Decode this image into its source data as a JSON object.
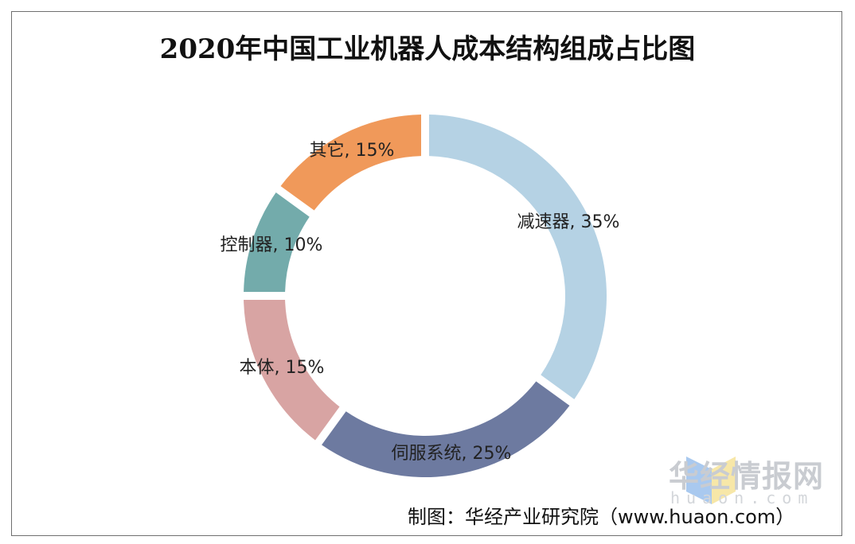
{
  "chart_data": {
    "type": "pie",
    "variant": "donut",
    "title": "2020年中国工业机器人成本结构组成占比图",
    "slices": [
      {
        "label": "减速器",
        "value": 35,
        "display": "减速器, 35%",
        "color": "#b5d2e4"
      },
      {
        "label": "伺服系统",
        "value": 25,
        "display": "伺服系统, 25%",
        "color": "#6d7aa0"
      },
      {
        "label": "本体",
        "value": 15,
        "display": "本体, 15%",
        "color": "#d8a4a3"
      },
      {
        "label": "控制器",
        "value": 10,
        "display": "控制器, 10%",
        "color": "#73abab"
      },
      {
        "label": "其它",
        "value": 15,
        "display": "其它, 15%",
        "color": "#f0995a"
      }
    ],
    "legend": "none",
    "unit": "%"
  },
  "watermark": {
    "name": "华经情报网",
    "domain": "huaon.com"
  },
  "source_note": "制图：华经产业研究院（www.huaon.com）"
}
